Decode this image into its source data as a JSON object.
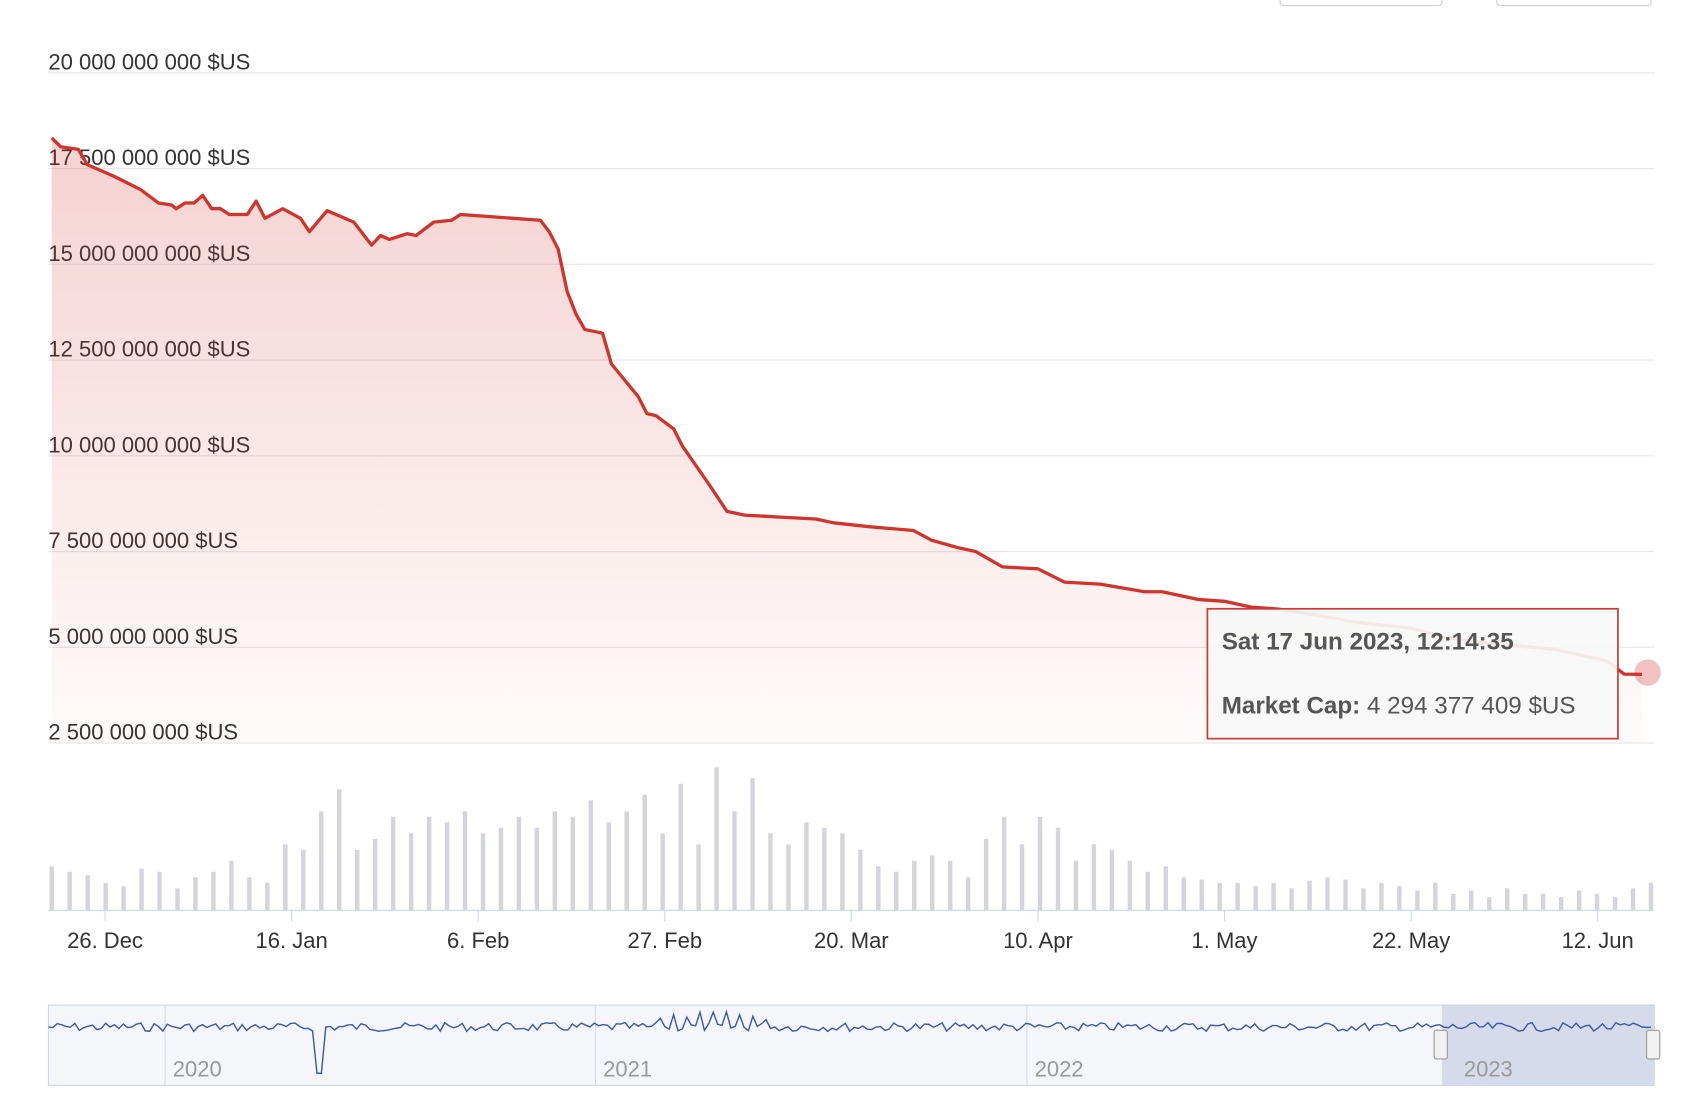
{
  "chart_data": {
    "type": "line",
    "series": [
      {
        "name": "Market Cap",
        "color": "#d0342c",
        "x": [
          -6,
          -5,
          -3,
          -2,
          1,
          4,
          6,
          7.5,
          8,
          9,
          10,
          11,
          12,
          13,
          14,
          16,
          17,
          18,
          20,
          22,
          23,
          25,
          28,
          30,
          31,
          32,
          34,
          35,
          37,
          39,
          40,
          43,
          49,
          50,
          51,
          52,
          53,
          54,
          56,
          57,
          60,
          61,
          62,
          64,
          65,
          68,
          70,
          72,
          76,
          80,
          82,
          86,
          91,
          93,
          96,
          98,
          101,
          105,
          108,
          112,
          117,
          119,
          123,
          126,
          129,
          132,
          136,
          141,
          147,
          151,
          156,
          163,
          169,
          171,
          173
        ],
        "values": [
          18300000000,
          18070000000,
          18000000000,
          17600000000,
          17300000000,
          16950000000,
          16600000000,
          16550000000,
          16450000000,
          16600000000,
          16600000000,
          16800000000,
          16450000000,
          16450000000,
          16300000000,
          16300000000,
          16650000000,
          16200000000,
          16450000000,
          16200000000,
          15850000000,
          16400000000,
          16100000000,
          15500000000,
          15750000000,
          15650000000,
          15800000000,
          15750000000,
          16100000000,
          16150000000,
          16300000000,
          16250000000,
          16150000000,
          15850000000,
          15400000000,
          14300000000,
          13700000000,
          13300000000,
          13200000000,
          12400000000,
          11550000000,
          11100000000,
          11050000000,
          10700000000,
          10250000000,
          9250000000,
          8550000000,
          8450000000,
          8400000000,
          8350000000,
          8250000000,
          8150000000,
          8050000000,
          7800000000,
          7600000000,
          7500000000,
          7100000000,
          7050000000,
          6700000000,
          6650000000,
          6450000000,
          6450000000,
          6250000000,
          6200000000,
          6050000000,
          6000000000,
          5850000000,
          5650000000,
          5500000000,
          5250000000,
          5100000000,
          4950000000,
          4650000000,
          4300000000,
          4294377409
        ]
      }
    ],
    "xlim": [
      -6,
      174
    ],
    "xticks": [
      {
        "value": 0,
        "label": "26. Dec"
      },
      {
        "value": 21,
        "label": "16. Jan"
      },
      {
        "value": 42,
        "label": "6. Feb"
      },
      {
        "value": 63,
        "label": "27. Feb"
      },
      {
        "value": 84,
        "label": "20. Mar"
      },
      {
        "value": 105,
        "label": "10. Apr"
      },
      {
        "value": 126,
        "label": "1. May"
      },
      {
        "value": 147,
        "label": "22. May"
      },
      {
        "value": 168,
        "label": "12. Jun"
      }
    ],
    "ylim": [
      2500000000,
      20000000000
    ],
    "yticks": [
      {
        "value": 2500000000,
        "label": "2 500 000 000 $US"
      },
      {
        "value": 5000000000,
        "label": "5 000 000 000 $US"
      },
      {
        "value": 7500000000,
        "label": "7 500 000 000 $US"
      },
      {
        "value": 10000000000,
        "label": "10 000 000 000 $US"
      },
      {
        "value": 12500000000,
        "label": "12 500 000 000 $US"
      },
      {
        "value": 15000000000,
        "label": "15 000 000 000 $US"
      },
      {
        "value": 17500000000,
        "label": "17 500 000 000 $US"
      },
      {
        "value": 20000000000,
        "label": "20 000 000 000 $US"
      }
    ],
    "grid": true,
    "volume": {
      "color": "#d4d4dc",
      "y2lim": [
        0,
        140
      ],
      "values": [
        40,
        35,
        32,
        25,
        22,
        38,
        35,
        20,
        30,
        35,
        45,
        30,
        25,
        60,
        55,
        90,
        110,
        55,
        65,
        85,
        70,
        85,
        80,
        90,
        70,
        75,
        85,
        75,
        90,
        85,
        100,
        80,
        90,
        105,
        70,
        115,
        60,
        130,
        90,
        120,
        70,
        60,
        80,
        75,
        70,
        55,
        40,
        35,
        45,
        50,
        45,
        30,
        65,
        85,
        60,
        85,
        75,
        45,
        60,
        55,
        45,
        35,
        40,
        30,
        28,
        25,
        25,
        22,
        25,
        20,
        27,
        30,
        28,
        20,
        25,
        22,
        18,
        25,
        15,
        18,
        12,
        20,
        15,
        15,
        12,
        18,
        15,
        12,
        20,
        25
      ]
    },
    "tooltip": {
      "title": "Sat 17 Jun 2023, 12:14:35",
      "label": "Market Cap:",
      "value": "4 294 377 409 $US"
    },
    "navigator": {
      "labels": [
        "2020",
        "2021",
        "2022",
        "2023"
      ]
    }
  }
}
